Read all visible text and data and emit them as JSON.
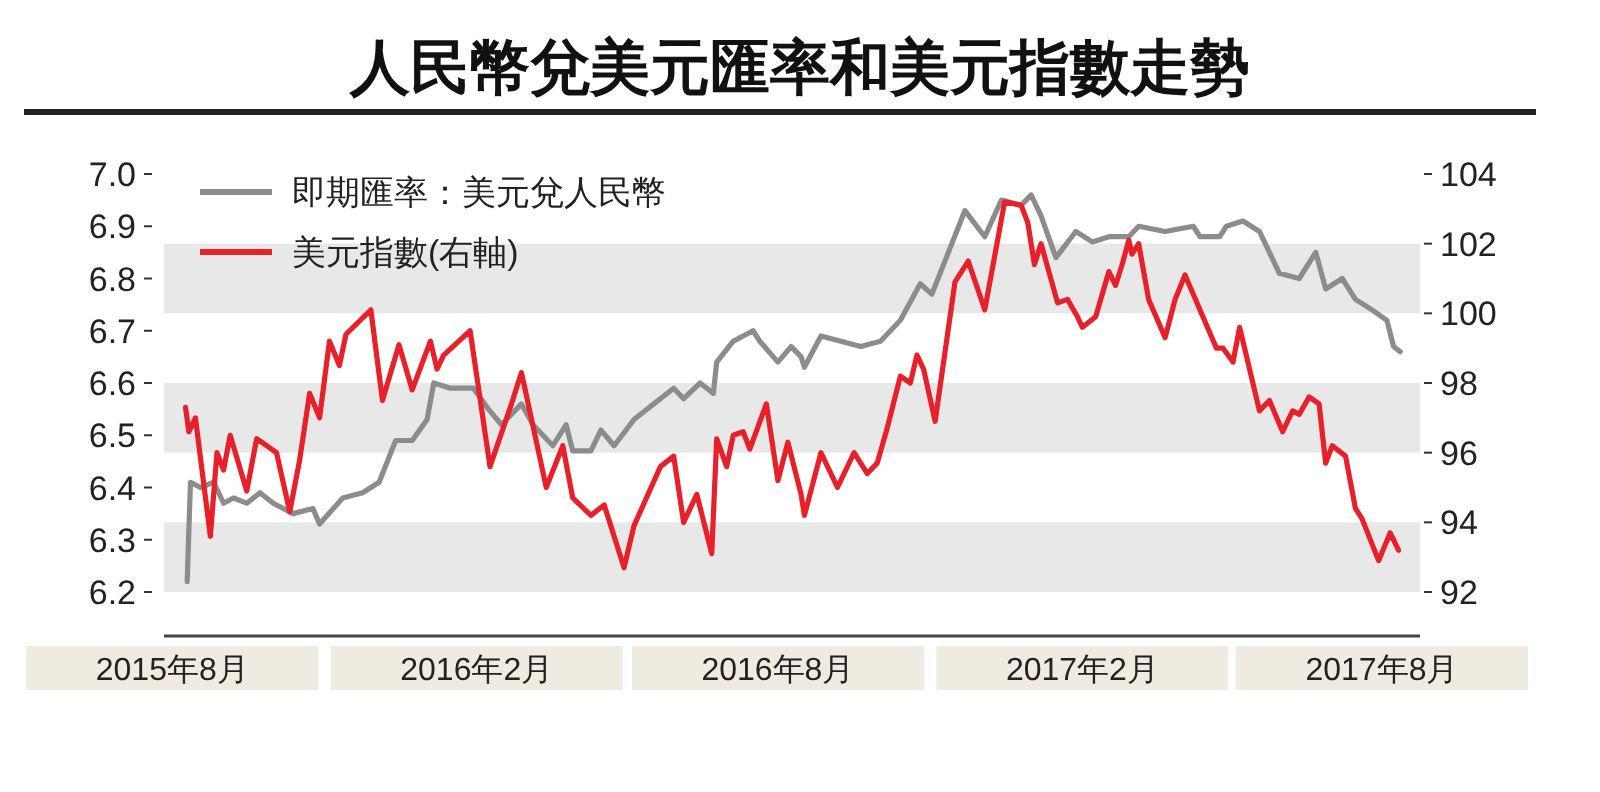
{
  "chart_data": {
    "type": "line",
    "title": "人民幣兌美元匯率和美元指數走勢",
    "xlim": [
      "2015-07-27",
      "2017-08-24"
    ],
    "xticks": [
      {
        "value": "2015-08-01",
        "label": "2015年8月"
      },
      {
        "value": "2016-02-01",
        "label": "2016年2月"
      },
      {
        "value": "2016-08-01",
        "label": "2016年8月"
      },
      {
        "value": "2017-02-01",
        "label": "2017年2月"
      },
      {
        "value": "2017-08-01",
        "label": "2017年8月"
      }
    ],
    "ylim": [
      6.2,
      7.0
    ],
    "yticks": [
      {
        "value": 6.2,
        "label": "6.2"
      },
      {
        "value": 6.3,
        "label": "6.3"
      },
      {
        "value": 6.4,
        "label": "6.4"
      },
      {
        "value": 6.5,
        "label": "6.5"
      },
      {
        "value": 6.6,
        "label": "6.6"
      },
      {
        "value": 6.7,
        "label": "6.7"
      },
      {
        "value": 6.8,
        "label": "6.8"
      },
      {
        "value": 6.9,
        "label": "6.9"
      },
      {
        "value": 7.0,
        "label": "7.0"
      }
    ],
    "y2lim": [
      92,
      104
    ],
    "y2ticks": [
      92,
      94,
      96,
      98,
      100,
      102,
      104
    ],
    "bands": [
      {
        "axis": "y2",
        "from": 92,
        "to": 94,
        "color": "#e8e8e8"
      },
      {
        "axis": "y2",
        "from": 96,
        "to": 98,
        "color": "#e8e8e8"
      },
      {
        "axis": "y2",
        "from": 100,
        "to": 102,
        "color": "#e8e8e8"
      }
    ],
    "legend": "top left",
    "series": [
      {
        "name": "即期匯率：美元兌人民幣",
        "color": "#8c8c8c",
        "axis": "y",
        "x": [
          "2015-08-10",
          "2015-08-12",
          "2015-08-18",
          "2015-08-26",
          "2015-09-01",
          "2015-09-07",
          "2015-09-15",
          "2015-09-23",
          "2015-10-01",
          "2015-10-13",
          "2015-10-25",
          "2015-10-29",
          "2015-11-12",
          "2015-11-24",
          "2015-12-04",
          "2015-12-14",
          "2015-12-24",
          "2016-01-02",
          "2016-01-06",
          "2016-01-16",
          "2016-01-30",
          "2016-02-08",
          "2016-02-16",
          "2016-02-28",
          "2016-03-06",
          "2016-03-18",
          "2016-03-26",
          "2016-03-30",
          "2016-04-10",
          "2016-04-16",
          "2016-04-24",
          "2016-05-06",
          "2016-05-18",
          "2016-05-30",
          "2016-06-05",
          "2016-06-15",
          "2016-06-23",
          "2016-06-25",
          "2016-07-05",
          "2016-07-17",
          "2016-07-21",
          "2016-08-01",
          "2016-08-09",
          "2016-08-15",
          "2016-08-17",
          "2016-08-27",
          "2016-09-08",
          "2016-09-20",
          "2016-10-02",
          "2016-10-14",
          "2016-10-26",
          "2016-11-02",
          "2016-11-22",
          "2016-12-04",
          "2016-12-14",
          "2016-12-26",
          "2017-01-01",
          "2017-01-07",
          "2017-01-16",
          "2017-01-28",
          "2017-02-07",
          "2017-02-17",
          "2017-03-01",
          "2017-03-07",
          "2017-03-23",
          "2017-04-09",
          "2017-04-13",
          "2017-04-25",
          "2017-04-29",
          "2017-05-09",
          "2017-05-19",
          "2017-05-31",
          "2017-06-12",
          "2017-06-22",
          "2017-06-28",
          "2017-07-08",
          "2017-07-16",
          "2017-07-26",
          "2017-08-04",
          "2017-08-08",
          "2017-08-12"
        ],
        "values": [
          6.22,
          6.41,
          6.4,
          6.41,
          6.37,
          6.38,
          6.37,
          6.39,
          6.37,
          6.35,
          6.36,
          6.33,
          6.38,
          6.39,
          6.41,
          6.49,
          6.49,
          6.53,
          6.6,
          6.59,
          6.59,
          6.55,
          6.52,
          6.56,
          6.52,
          6.48,
          6.52,
          6.47,
          6.47,
          6.51,
          6.48,
          6.53,
          6.56,
          6.59,
          6.57,
          6.6,
          6.58,
          6.64,
          6.68,
          6.7,
          6.68,
          6.64,
          6.67,
          6.65,
          6.63,
          6.69,
          6.68,
          6.67,
          6.68,
          6.72,
          6.79,
          6.77,
          6.93,
          6.88,
          6.95,
          6.94,
          6.96,
          6.92,
          6.84,
          6.89,
          6.87,
          6.88,
          6.88,
          6.9,
          6.89,
          6.9,
          6.88,
          6.88,
          6.9,
          6.91,
          6.89,
          6.81,
          6.8,
          6.85,
          6.78,
          6.8,
          6.76,
          6.74,
          6.72,
          6.67,
          6.66
        ]
      },
      {
        "name": "美元指數(右軸)",
        "color": "#e8202a",
        "axis": "y2",
        "x": [
          "2015-08-09",
          "2015-08-11",
          "2015-08-15",
          "2015-08-24",
          "2015-08-28",
          "2015-09-01",
          "2015-09-05",
          "2015-09-15",
          "2015-09-21",
          "2015-10-03",
          "2015-10-11",
          "2015-10-17",
          "2015-10-23",
          "2015-10-29",
          "2015-11-04",
          "2015-11-10",
          "2015-11-14",
          "2015-11-29",
          "2015-12-06",
          "2015-12-16",
          "2015-12-24",
          "2016-01-04",
          "2016-01-08",
          "2016-01-12",
          "2016-01-28",
          "2016-02-09",
          "2016-02-22",
          "2016-02-28",
          "2016-03-14",
          "2016-03-24",
          "2016-03-30",
          "2016-04-10",
          "2016-04-18",
          "2016-04-30",
          "2016-05-06",
          "2016-05-22",
          "2016-05-30",
          "2016-06-05",
          "2016-06-13",
          "2016-06-22",
          "2016-06-25",
          "2016-07-01",
          "2016-07-05",
          "2016-07-11",
          "2016-07-15",
          "2016-07-25",
          "2016-08-01",
          "2016-08-07",
          "2016-08-15",
          "2016-08-17",
          "2016-08-27",
          "2016-09-06",
          "2016-09-16",
          "2016-09-24",
          "2016-09-30",
          "2016-10-06",
          "2016-10-14",
          "2016-10-20",
          "2016-10-24",
          "2016-10-28",
          "2016-11-04",
          "2016-11-16",
          "2016-11-24",
          "2016-12-04",
          "2016-12-16",
          "2016-12-26",
          "2016-12-30",
          "2017-01-03",
          "2017-01-07",
          "2017-01-17",
          "2017-01-23",
          "2017-01-29",
          "2017-02-01",
          "2017-02-09",
          "2017-02-17",
          "2017-02-21",
          "2017-02-25",
          "2017-03-01",
          "2017-03-03",
          "2017-03-07",
          "2017-03-13",
          "2017-03-23",
          "2017-03-29",
          "2017-04-04",
          "2017-04-23",
          "2017-04-27",
          "2017-05-03",
          "2017-05-07",
          "2017-05-19",
          "2017-05-25",
          "2017-06-02",
          "2017-06-08",
          "2017-06-12",
          "2017-06-18",
          "2017-06-24",
          "2017-06-28",
          "2017-07-02",
          "2017-07-10",
          "2017-07-16",
          "2017-07-20",
          "2017-07-30",
          "2017-08-06",
          "2017-08-11"
        ],
        "values": [
          97.3,
          96.6,
          97.0,
          93.6,
          96.0,
          95.5,
          96.5,
          94.9,
          96.4,
          96.0,
          94.3,
          95.8,
          97.7,
          97.0,
          99.2,
          98.5,
          99.4,
          100.1,
          97.5,
          99.1,
          97.8,
          99.2,
          98.4,
          98.8,
          99.5,
          95.6,
          97.4,
          98.3,
          95.0,
          96.2,
          94.7,
          94.2,
          94.5,
          92.7,
          93.9,
          95.6,
          95.9,
          94.0,
          94.8,
          93.1,
          96.4,
          95.6,
          96.5,
          96.6,
          96.1,
          97.4,
          95.2,
          96.3,
          94.8,
          94.2,
          96.0,
          95.0,
          96.0,
          95.4,
          95.7,
          96.7,
          98.2,
          98.0,
          98.8,
          98.4,
          96.9,
          100.9,
          101.5,
          100.1,
          103.2,
          103.1,
          102.6,
          101.4,
          102.0,
          100.3,
          100.4,
          99.9,
          99.6,
          99.9,
          101.2,
          100.8,
          101.4,
          102.1,
          101.7,
          102.0,
          100.4,
          99.3,
          100.4,
          101.1,
          99.0,
          99.0,
          98.6,
          99.6,
          97.2,
          97.5,
          96.6,
          97.2,
          97.1,
          97.6,
          97.4,
          95.7,
          96.2,
          95.9,
          94.4,
          94.1,
          92.9,
          93.7,
          93.2
        ]
      }
    ]
  }
}
